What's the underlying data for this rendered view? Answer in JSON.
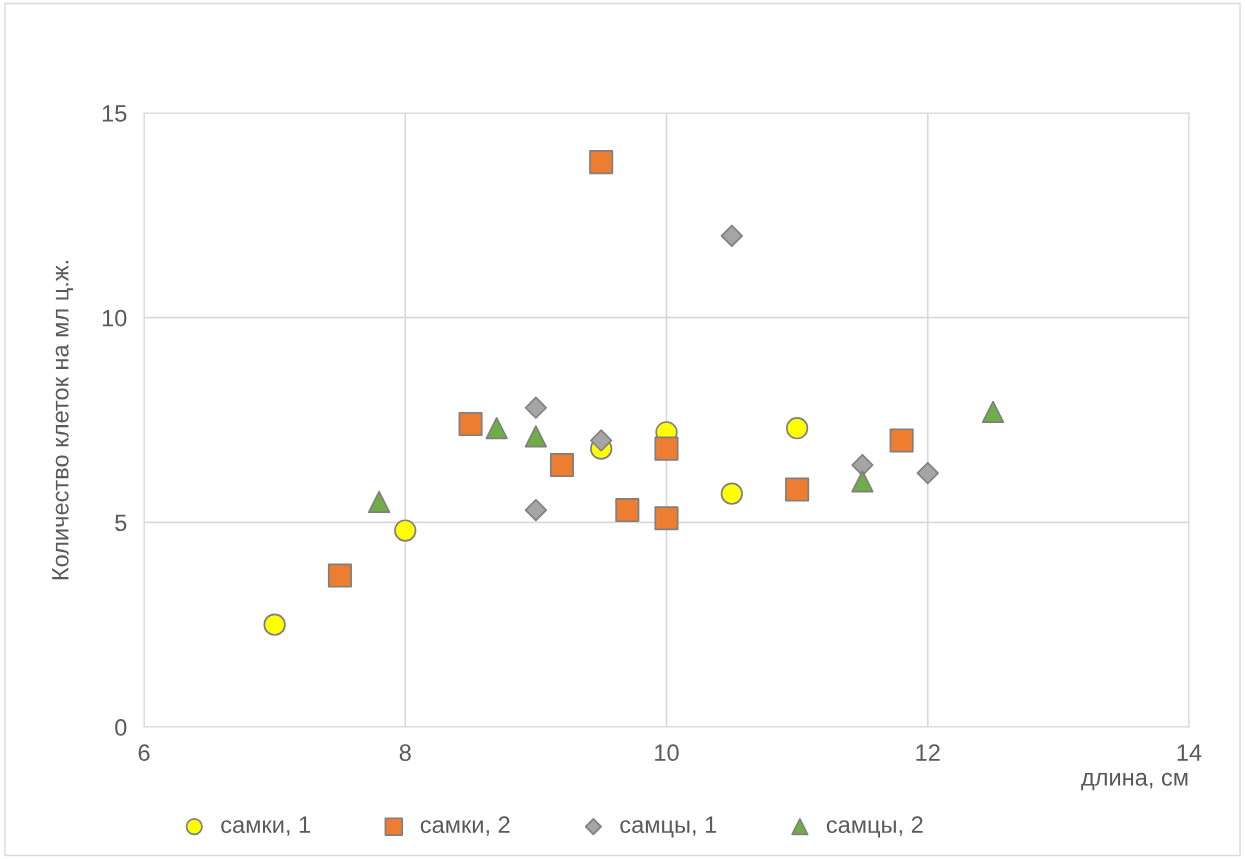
{
  "chart_data": {
    "type": "scatter",
    "xlabel": "длина, см",
    "ylabel": "Количество клеток на мл ц.ж.",
    "xlim": [
      6,
      14
    ],
    "xticks": [
      6,
      8,
      10,
      12,
      14
    ],
    "ylim": [
      0,
      15
    ],
    "yticks": [
      0,
      5,
      10,
      15
    ],
    "grid": true,
    "legend": "bottom",
    "series": [
      {
        "name": "самки, 1",
        "color": "#ffff00",
        "marker": "circle",
        "x": [
          7.0,
          8.0,
          9.5,
          10.0,
          10.5,
          11.0
        ],
        "values": [
          2.5,
          4.8,
          6.8,
          7.2,
          5.7,
          7.3
        ]
      },
      {
        "name": "самки, 2",
        "color": "#ed7d31",
        "marker": "square",
        "x": [
          7.5,
          8.5,
          9.5,
          9.2,
          9.7,
          10.0,
          10.0,
          11.0,
          11.8
        ],
        "values": [
          3.7,
          7.4,
          13.8,
          6.4,
          5.3,
          5.1,
          6.8,
          5.8,
          7.0
        ]
      },
      {
        "name": "самцы, 1",
        "color": "#a5a5a5",
        "marker": "diamond",
        "x": [
          9.0,
          9.0,
          9.5,
          10.5,
          11.5,
          12.0
        ],
        "values": [
          7.8,
          5.3,
          7.0,
          12.0,
          6.4,
          6.2
        ]
      },
      {
        "name": "самцы, 2",
        "color": "#70ad47",
        "marker": "triangle",
        "x": [
          7.8,
          8.7,
          9.0,
          11.5,
          12.5
        ],
        "values": [
          5.5,
          7.3,
          7.1,
          6.0,
          7.7
        ]
      }
    ]
  }
}
